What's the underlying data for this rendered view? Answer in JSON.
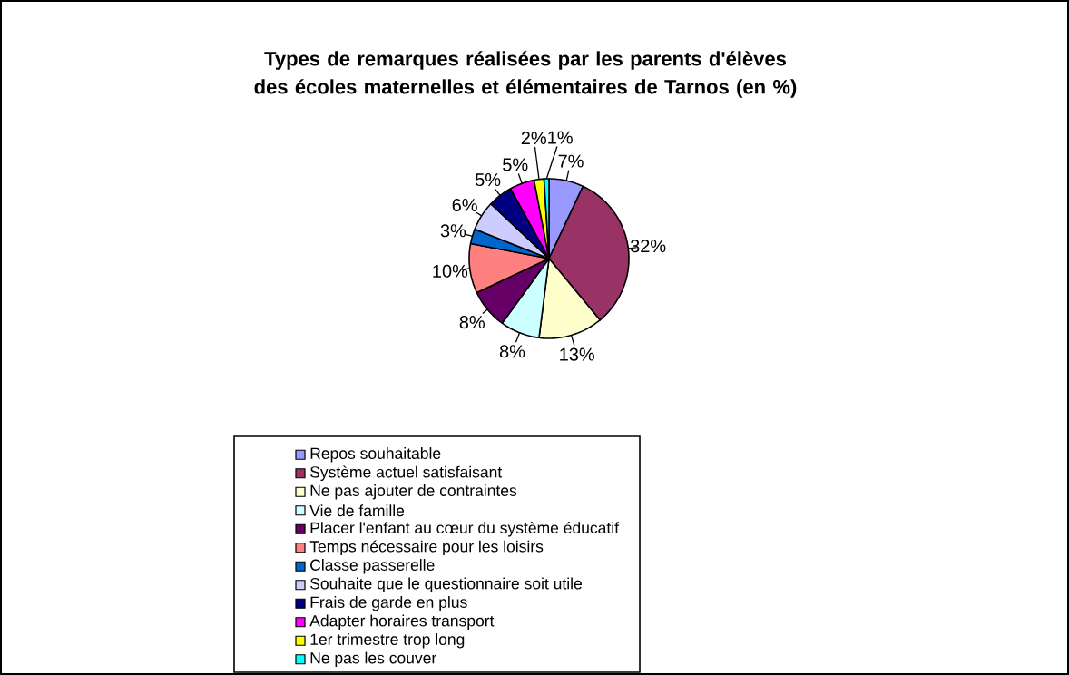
{
  "chart_data": {
    "type": "pie",
    "title": "Types de remarques réalisées par les parents d'élèves des écoles maternelles et élémentaires de Tarnos (en %)",
    "categories": [
      "Repos souhaitable",
      "Système actuel satisfaisant",
      "Ne pas ajouter de contraintes",
      "Vie de famille",
      "Placer l'enfant au cœur du système éducatif",
      "Temps nécessaire pour les loisirs",
      "Classe passerelle",
      "Souhaite que le questionnaire soit utile",
      "Frais de garde en plus",
      "Adapter horaires transport",
      "1er trimestre trop long",
      "Ne pas les couver"
    ],
    "values": [
      7,
      32,
      13,
      8,
      8,
      10,
      3,
      6,
      5,
      5,
      2,
      1
    ],
    "value_labels": [
      "7%",
      "32%",
      "13%",
      "8%",
      "8%",
      "10%",
      "3%",
      "6%",
      "5%",
      "5%",
      "2%",
      "1%"
    ],
    "colors": [
      "#9999ff",
      "#993366",
      "#ffffcc",
      "#ccffff",
      "#660066",
      "#ff8080",
      "#0066cc",
      "#ccccff",
      "#000080",
      "#ff00ff",
      "#ffff00",
      "#00ffff"
    ],
    "legend": "bottom"
  }
}
